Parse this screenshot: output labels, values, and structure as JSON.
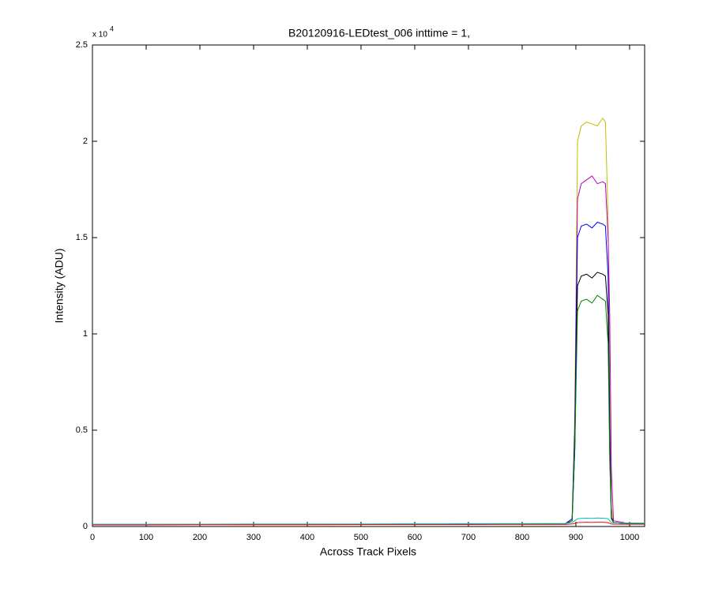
{
  "chart_data": {
    "type": "line",
    "title": "B20120916-LEDtest_006 inttime = 1,",
    "x_label": "Across Track Pixels",
    "y_label": "Intensity (ADU)",
    "y_multiplier_base": "x 10",
    "y_multiplier_exponent": "4",
    "x": [
      0,
      100,
      200,
      300,
      400,
      500,
      600,
      700,
      800,
      880,
      893,
      898,
      903,
      910,
      920,
      930,
      940,
      950,
      955,
      960,
      963,
      966,
      970,
      1000,
      1028
    ],
    "series": [
      {
        "name": "yellow",
        "color": "#bfbf00",
        "values": [
          0.01,
          0.01,
          0.01,
          0.011,
          0.011,
          0.012,
          0.012,
          0.013,
          0.013,
          0.014,
          0.03,
          0.6,
          2.0,
          2.08,
          2.1,
          2.09,
          2.08,
          2.12,
          2.1,
          1.6,
          0.7,
          0.1,
          0.02,
          0.015,
          0.015
        ]
      },
      {
        "name": "magenta",
        "color": "#bf00bf",
        "values": [
          0.01,
          0.01,
          0.01,
          0.011,
          0.011,
          0.012,
          0.012,
          0.013,
          0.013,
          0.014,
          0.03,
          0.5,
          1.7,
          1.78,
          1.8,
          1.82,
          1.78,
          1.79,
          1.78,
          1.5,
          1.1,
          0.3,
          0.03,
          0.015,
          0.015
        ]
      },
      {
        "name": "blue",
        "color": "#0000ff",
        "values": [
          0.01,
          0.01,
          0.01,
          0.011,
          0.011,
          0.012,
          0.012,
          0.013,
          0.013,
          0.014,
          0.04,
          0.5,
          1.5,
          1.56,
          1.57,
          1.55,
          1.58,
          1.57,
          1.56,
          1.3,
          0.5,
          0.05,
          0.02,
          0.015,
          0.015
        ]
      },
      {
        "name": "black",
        "color": "#000000",
        "values": [
          0.01,
          0.01,
          0.01,
          0.011,
          0.011,
          0.012,
          0.012,
          0.013,
          0.013,
          0.014,
          0.03,
          0.4,
          1.25,
          1.3,
          1.31,
          1.29,
          1.32,
          1.31,
          1.3,
          1.1,
          0.4,
          0.05,
          0.02,
          0.015,
          0.015
        ]
      },
      {
        "name": "green",
        "color": "#008000",
        "values": [
          0.01,
          0.01,
          0.01,
          0.011,
          0.011,
          0.012,
          0.012,
          0.013,
          0.013,
          0.014,
          0.03,
          0.4,
          1.12,
          1.17,
          1.18,
          1.16,
          1.2,
          1.18,
          1.17,
          0.95,
          0.35,
          0.04,
          0.02,
          0.015,
          0.015
        ]
      },
      {
        "name": "cyan",
        "color": "#00bfbf",
        "values": [
          0.012,
          0.012,
          0.012,
          0.013,
          0.013,
          0.013,
          0.014,
          0.014,
          0.015,
          0.016,
          0.02,
          0.03,
          0.04,
          0.042,
          0.043,
          0.042,
          0.044,
          0.043,
          0.042,
          0.04,
          0.03,
          0.02,
          0.02,
          0.018,
          0.018
        ]
      },
      {
        "name": "red",
        "color": "#ff0000",
        "values": [
          0.008,
          0.008,
          0.009,
          0.009,
          0.009,
          0.01,
          0.01,
          0.01,
          0.011,
          0.011,
          0.013,
          0.016,
          0.02,
          0.021,
          0.022,
          0.021,
          0.022,
          0.022,
          0.021,
          0.02,
          0.016,
          0.013,
          0.012,
          0.012,
          0.012
        ]
      }
    ],
    "xlim": [
      0,
      1028
    ],
    "ylim": [
      0,
      2.5
    ],
    "xticks": [
      0,
      100,
      200,
      300,
      400,
      500,
      600,
      700,
      800,
      900,
      1000
    ],
    "yticks": [
      0,
      0.5,
      1,
      1.5,
      2,
      2.5
    ],
    "grid": false,
    "legend": false
  }
}
